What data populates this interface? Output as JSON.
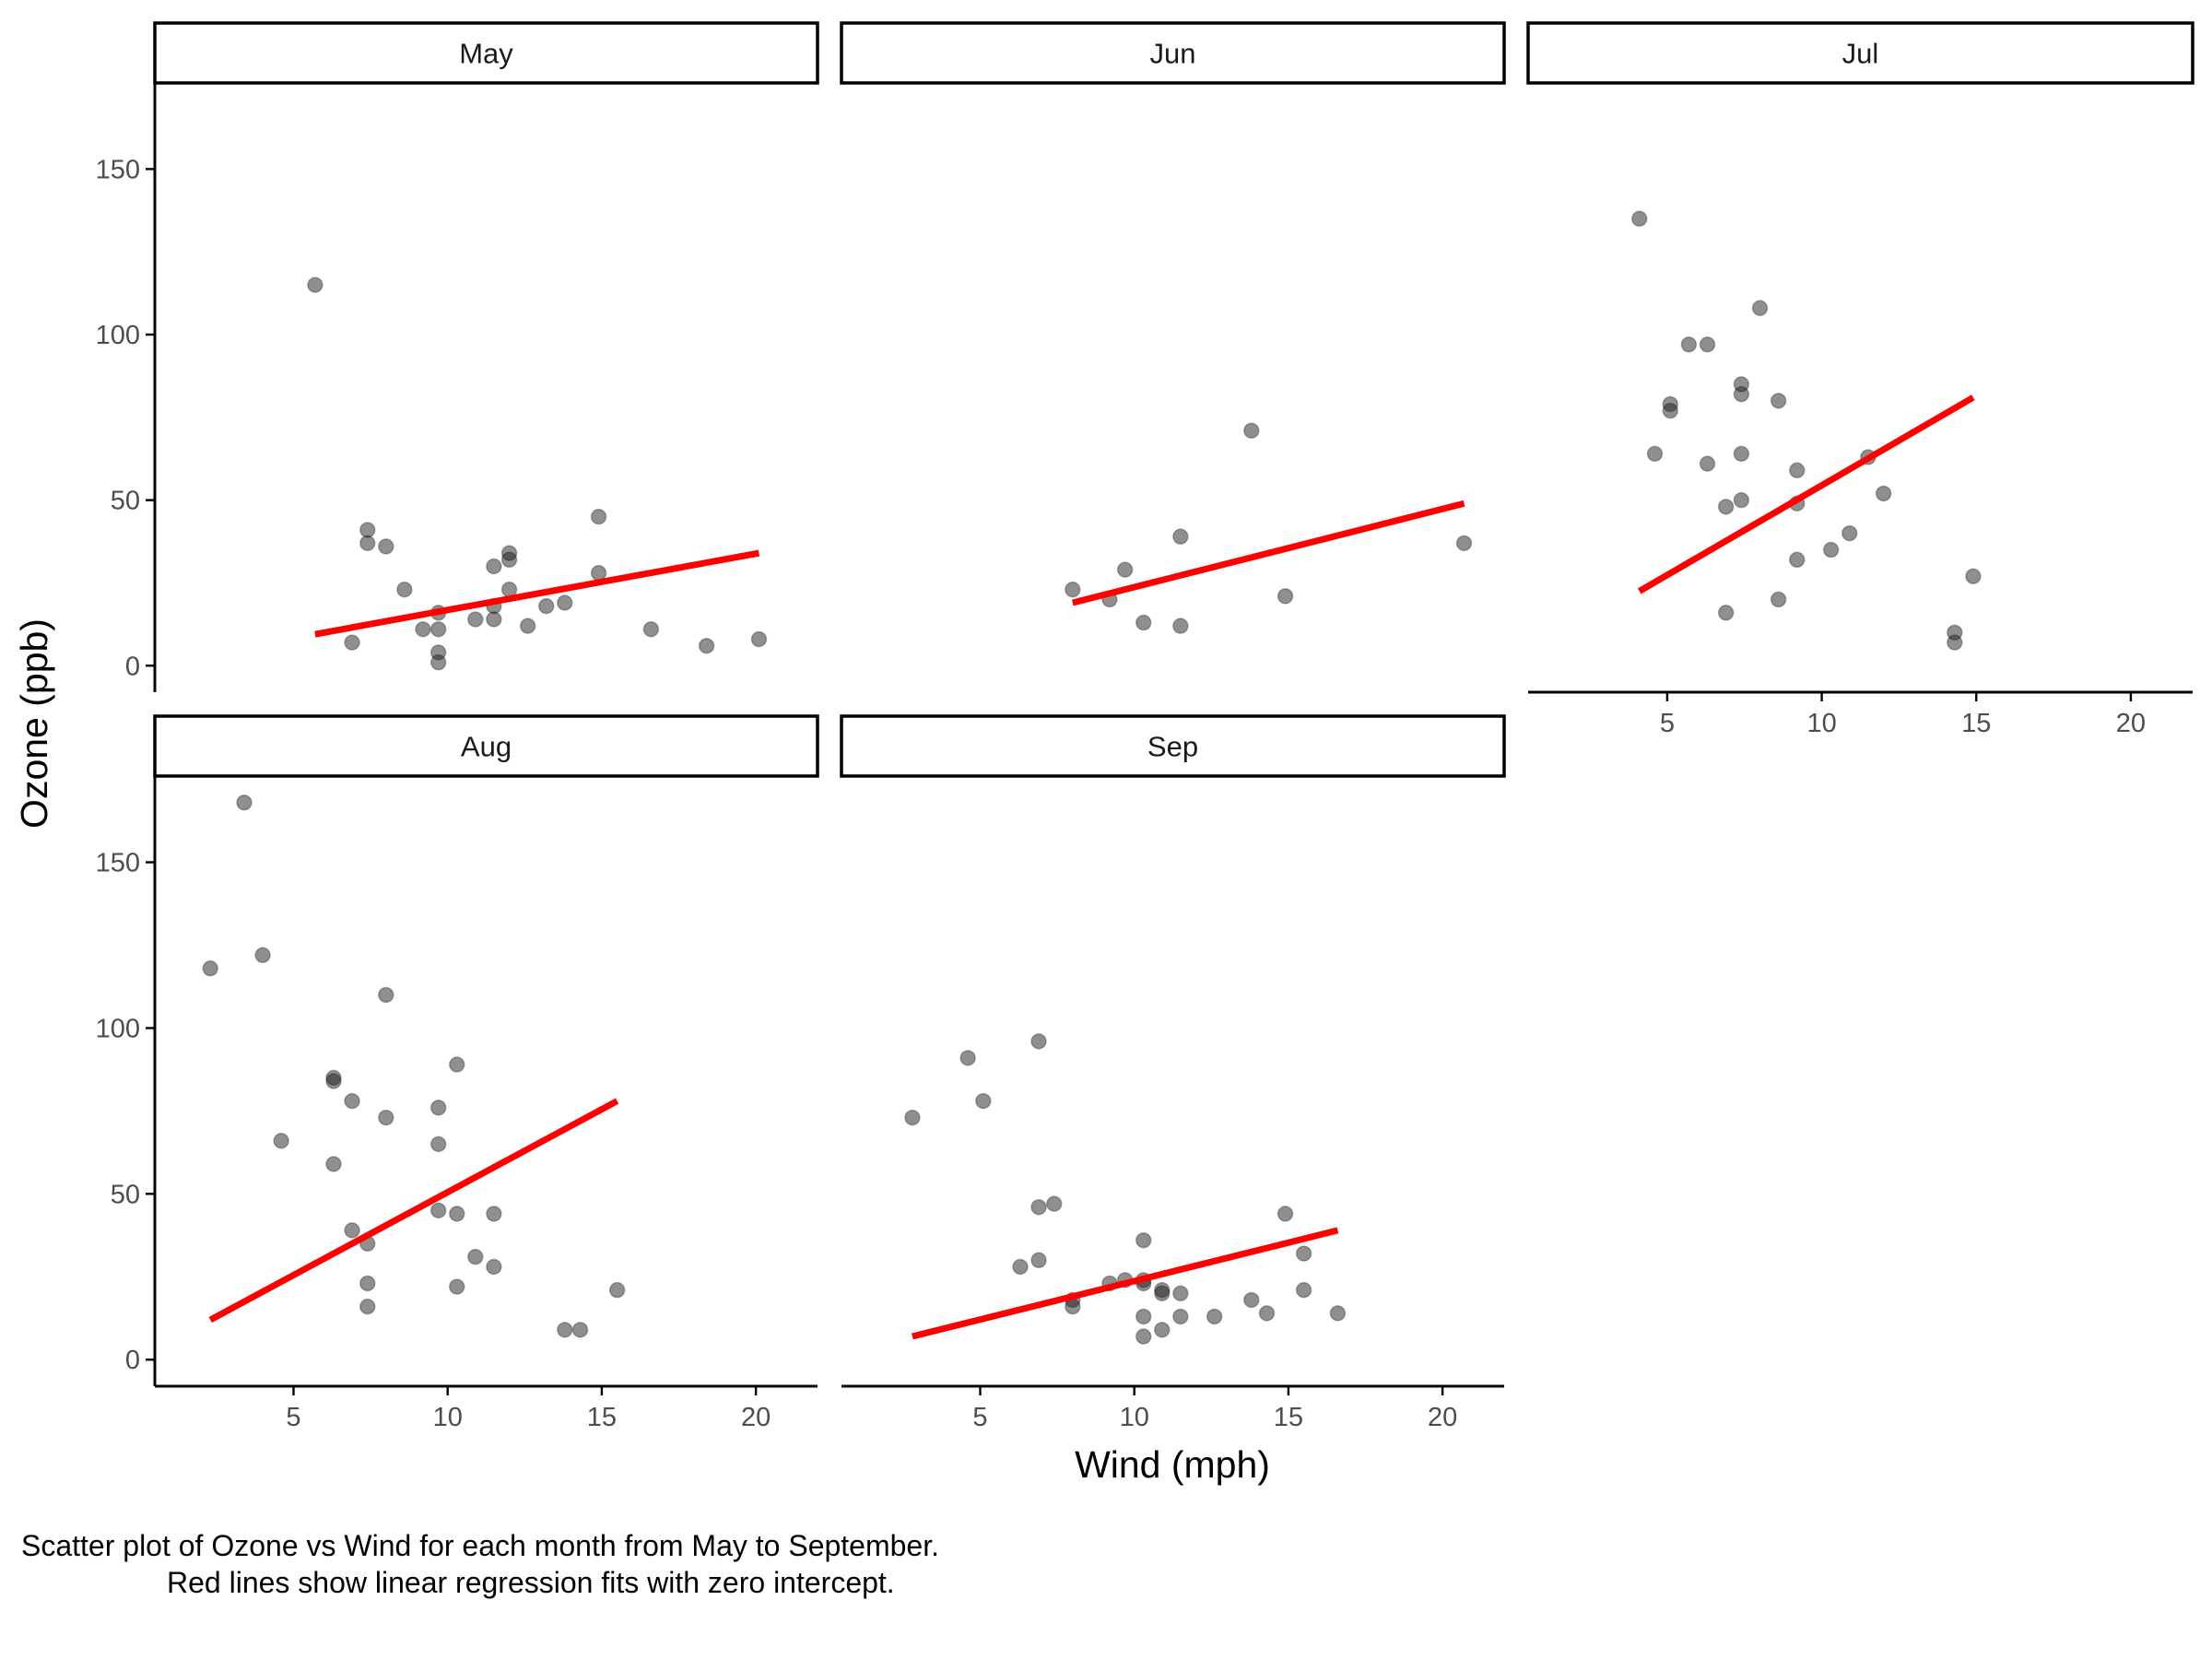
{
  "chart_data": {
    "type": "scatter",
    "facet_layout": "3 columns x 2 rows (free x per facet, shared y)",
    "xlabel": "Wind (mph)",
    "ylabel": "Ozone (ppb)",
    "xlim": [
      0.5,
      22
    ],
    "ylim": [
      -8,
      176
    ],
    "x_ticks": [
      "5",
      "10",
      "15",
      "20"
    ],
    "y_ticks": [
      "0",
      "50",
      "100",
      "150"
    ],
    "grid": false,
    "point_color": "#1f1f1f",
    "fit_line_color": "#ff0000",
    "caption": {
      "line1": "Scatter plot of Ozone vs Wind for each month from May to September.",
      "line2": "Red lines show linear regression fits with zero intercept."
    },
    "panels": [
      {
        "month": "May",
        "fit": {
          "x": [
            5.7,
            20.1
          ],
          "y": [
            9.5,
            34
          ]
        },
        "points": [
          [
            5.7,
            115
          ],
          [
            6.9,
            7
          ],
          [
            7.4,
            41
          ],
          [
            7.4,
            37
          ],
          [
            8.0,
            36
          ],
          [
            8.6,
            23
          ],
          [
            9.2,
            11
          ],
          [
            9.7,
            16
          ],
          [
            9.7,
            11
          ],
          [
            9.7,
            4
          ],
          [
            9.7,
            1
          ],
          [
            10.9,
            14
          ],
          [
            11.5,
            30
          ],
          [
            11.5,
            18
          ],
          [
            11.5,
            14
          ],
          [
            12.0,
            34
          ],
          [
            12.0,
            32
          ],
          [
            12.0,
            23
          ],
          [
            12.6,
            12
          ],
          [
            13.2,
            18
          ],
          [
            13.8,
            19
          ],
          [
            14.9,
            45
          ],
          [
            14.9,
            28
          ],
          [
            16.6,
            11
          ],
          [
            18.4,
            6
          ],
          [
            20.1,
            8
          ]
        ]
      },
      {
        "month": "Jun",
        "fit": {
          "x": [
            8.0,
            20.7
          ],
          "y": [
            19,
            49
          ]
        },
        "points": [
          [
            8.0,
            23
          ],
          [
            9.2,
            20
          ],
          [
            9.7,
            29
          ],
          [
            10.3,
            13
          ],
          [
            11.5,
            39
          ],
          [
            11.5,
            12
          ],
          [
            13.8,
            71
          ],
          [
            14.9,
            21
          ],
          [
            20.7,
            37
          ]
        ]
      },
      {
        "month": "Jul",
        "fit": {
          "x": [
            4.1,
            14.9
          ],
          "y": [
            22.5,
            81
          ]
        },
        "points": [
          [
            4.1,
            135
          ],
          [
            4.6,
            64
          ],
          [
            5.1,
            79
          ],
          [
            5.1,
            77
          ],
          [
            5.7,
            97
          ],
          [
            6.3,
            97
          ],
          [
            6.3,
            61
          ],
          [
            6.9,
            48
          ],
          [
            6.9,
            16
          ],
          [
            7.4,
            85
          ],
          [
            7.4,
            82
          ],
          [
            7.4,
            64
          ],
          [
            7.4,
            50
          ],
          [
            8.0,
            108
          ],
          [
            8.6,
            80
          ],
          [
            8.6,
            20
          ],
          [
            9.2,
            59
          ],
          [
            9.2,
            49
          ],
          [
            9.2,
            32
          ],
          [
            10.3,
            35
          ],
          [
            10.9,
            40
          ],
          [
            11.5,
            63
          ],
          [
            12.0,
            52
          ],
          [
            14.3,
            10
          ],
          [
            14.3,
            7
          ],
          [
            14.9,
            27
          ]
        ]
      },
      {
        "month": "Aug",
        "fit": {
          "x": [
            2.3,
            15.5
          ],
          "y": [
            12,
            78
          ]
        },
        "points": [
          [
            2.3,
            118
          ],
          [
            3.4,
            168
          ],
          [
            4.0,
            122
          ],
          [
            4.6,
            66
          ],
          [
            6.3,
            85
          ],
          [
            6.3,
            84
          ],
          [
            6.3,
            59
          ],
          [
            6.9,
            78
          ],
          [
            6.9,
            39
          ],
          [
            7.4,
            35
          ],
          [
            7.4,
            23
          ],
          [
            7.4,
            16
          ],
          [
            8.0,
            110
          ],
          [
            8.0,
            73
          ],
          [
            9.7,
            76
          ],
          [
            9.7,
            65
          ],
          [
            9.7,
            45
          ],
          [
            10.3,
            89
          ],
          [
            10.3,
            44
          ],
          [
            10.3,
            22
          ],
          [
            10.9,
            31
          ],
          [
            11.5,
            44
          ],
          [
            11.5,
            28
          ],
          [
            13.8,
            9
          ],
          [
            14.3,
            9
          ],
          [
            15.5,
            21
          ]
        ]
      },
      {
        "month": "Sep",
        "fit": {
          "x": [
            2.8,
            16.6
          ],
          "y": [
            7,
            39
          ]
        },
        "points": [
          [
            2.8,
            73
          ],
          [
            4.6,
            91
          ],
          [
            5.1,
            78
          ],
          [
            6.3,
            28
          ],
          [
            6.9,
            96
          ],
          [
            6.9,
            46
          ],
          [
            6.9,
            30
          ],
          [
            7.4,
            47
          ],
          [
            8.0,
            18
          ],
          [
            8.0,
            16
          ],
          [
            9.2,
            23
          ],
          [
            9.7,
            24
          ],
          [
            10.3,
            36
          ],
          [
            10.3,
            24
          ],
          [
            10.3,
            23
          ],
          [
            10.3,
            13
          ],
          [
            10.3,
            7
          ],
          [
            10.9,
            21
          ],
          [
            10.9,
            20
          ],
          [
            10.9,
            9
          ],
          [
            11.5,
            20
          ],
          [
            11.5,
            13
          ],
          [
            12.6,
            13
          ],
          [
            13.8,
            18
          ],
          [
            14.3,
            14
          ],
          [
            14.9,
            44
          ],
          [
            15.5,
            32
          ],
          [
            15.5,
            21
          ],
          [
            16.6,
            14
          ]
        ]
      }
    ]
  }
}
